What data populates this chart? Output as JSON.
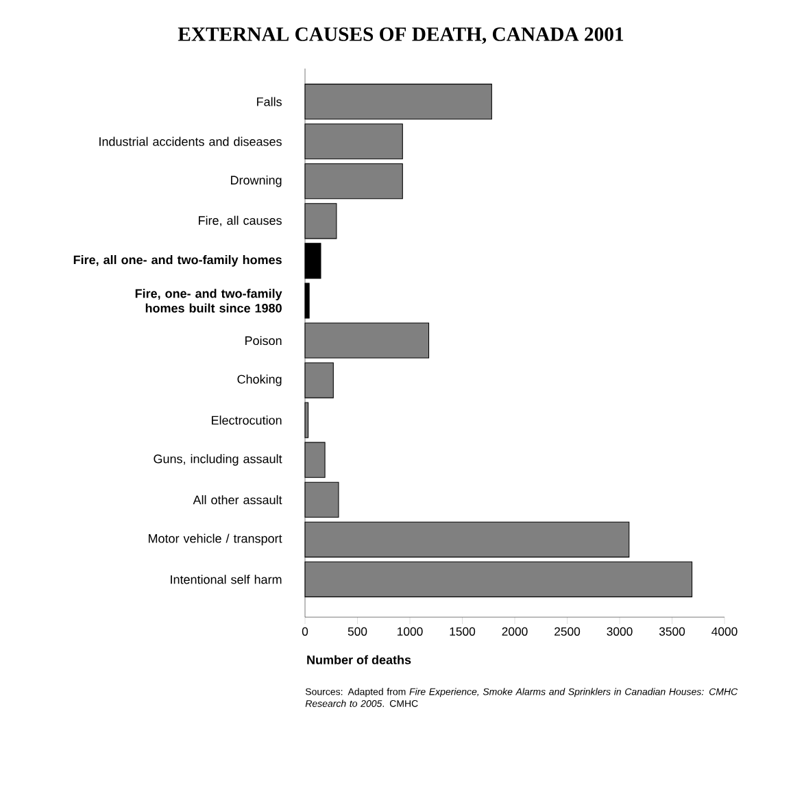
{
  "chart_data": {
    "type": "bar",
    "orientation": "horizontal",
    "title": "EXTERNAL CAUSES OF DEATH, CANADA 2001",
    "xlabel": "Number of deaths",
    "categories": [
      "Falls",
      "Industrial accidents and diseases",
      "Drowning",
      "Fire, all causes",
      "**Fire, all one- and two-family homes**",
      "**Fire, one- and two-family homes built since 1980**",
      "Poison",
      "Choking",
      "Electrocution",
      "Guns, including assault",
      "All other assault",
      "Motor vehicle / transport",
      "Intentional self harm"
    ],
    "values": [
      1780,
      930,
      930,
      300,
      150,
      40,
      1180,
      270,
      30,
      190,
      320,
      3090,
      3690
    ],
    "colors": [
      "#808080",
      "#808080",
      "#808080",
      "#808080",
      "#000000",
      "#000000",
      "#808080",
      "#808080",
      "#808080",
      "#808080",
      "#808080",
      "#808080",
      "#808080"
    ],
    "xlim": [
      0,
      4000
    ],
    "xticks": [
      0,
      500,
      1000,
      1500,
      2000,
      2500,
      3000,
      3500,
      4000
    ],
    "grid": false,
    "annotations": [
      "Sources: Adapted from *Fire Experience, Smoke Alarms and Sprinklers in Canadian Houses: CMHC Research to 2005*. CMHC"
    ]
  }
}
